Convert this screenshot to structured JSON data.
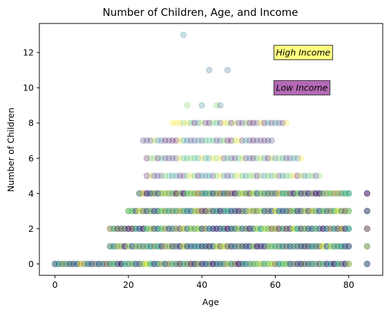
{
  "chart_data": {
    "type": "scatter",
    "title": "Number of Children, Age, and Income",
    "xlabel": "Age",
    "ylabel": "Number of Children",
    "xlim": [
      -4.25,
      89.25
    ],
    "ylim": [
      -0.65,
      13.65
    ],
    "x_ticks": [
      0,
      20,
      40,
      60,
      80
    ],
    "y_ticks": [
      0,
      2,
      4,
      6,
      8,
      10,
      12
    ],
    "grid": false,
    "point_alpha": 0.25,
    "colormap": "viridis",
    "color_encodes": "income",
    "annotations": [
      {
        "text": "High Income",
        "x": 60,
        "y": 12,
        "box_color": "#ffff3a"
      },
      {
        "text": "Low Income",
        "x": 60,
        "y": 10,
        "box_color": "#8c1a8c"
      }
    ],
    "rows": [
      {
        "children": 0,
        "age_min": 0,
        "age_max": 80,
        "extra_ages": [
          85
        ]
      },
      {
        "children": 1,
        "age_min": 15,
        "age_max": 80,
        "extra_ages": [
          85
        ]
      },
      {
        "children": 2,
        "age_min": 15,
        "age_max": 80,
        "extra_ages": [
          85
        ]
      },
      {
        "children": 3,
        "age_min": 20,
        "age_max": 80,
        "extra_ages": [
          85
        ]
      },
      {
        "children": 4,
        "age_min": 23,
        "age_max": 80,
        "extra_ages": [
          85
        ]
      },
      {
        "children": 5,
        "age_min": 25,
        "age_max": 72,
        "extra_ages": []
      },
      {
        "children": 6,
        "age_min": 25,
        "age_max": 67,
        "extra_ages": []
      },
      {
        "children": 7,
        "age_min": 24,
        "age_max": 59,
        "extra_ages": []
      },
      {
        "children": 8,
        "age_min": 32,
        "age_max": 63,
        "extra_ages": []
      }
    ],
    "points": [
      {
        "x": 36,
        "y": 9
      },
      {
        "x": 40,
        "y": 9
      },
      {
        "x": 44,
        "y": 9
      },
      {
        "x": 45,
        "y": 9
      },
      {
        "x": 42,
        "y": 11
      },
      {
        "x": 47,
        "y": 11
      },
      {
        "x": 35,
        "y": 13
      }
    ]
  }
}
